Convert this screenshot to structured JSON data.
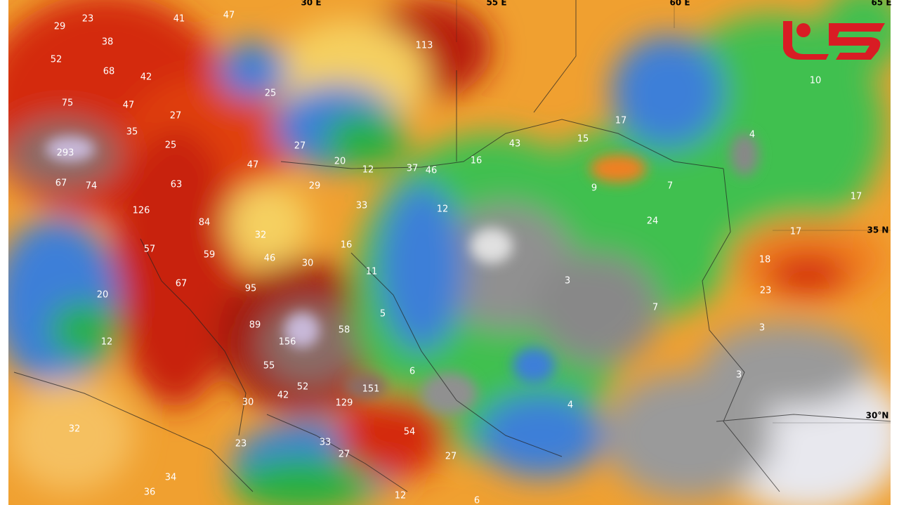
{
  "labels": [
    29,
    23,
    38,
    41,
    47,
    52,
    68,
    42,
    75,
    47,
    27,
    35,
    25,
    293,
    113,
    25,
    27,
    47,
    20,
    12,
    37,
    46,
    16,
    43,
    15,
    17,
    10,
    4,
    67,
    74,
    63,
    29,
    33,
    12,
    9,
    7,
    126,
    84,
    32,
    16,
    24,
    17,
    17,
    57,
    59,
    46,
    30,
    11,
    18,
    3,
    67,
    95,
    23,
    20,
    7,
    5,
    89,
    58,
    3,
    12,
    156,
    55,
    6,
    3,
    151,
    52,
    42,
    30,
    129,
    4,
    32,
    54,
    33,
    23,
    27,
    27,
    34,
    36,
    12,
    6
  ],
  "grid_labels": [
    "30 E",
    "55 E",
    "60 E",
    "65 E",
    "35 N",
    "30°N"
  ]
}
